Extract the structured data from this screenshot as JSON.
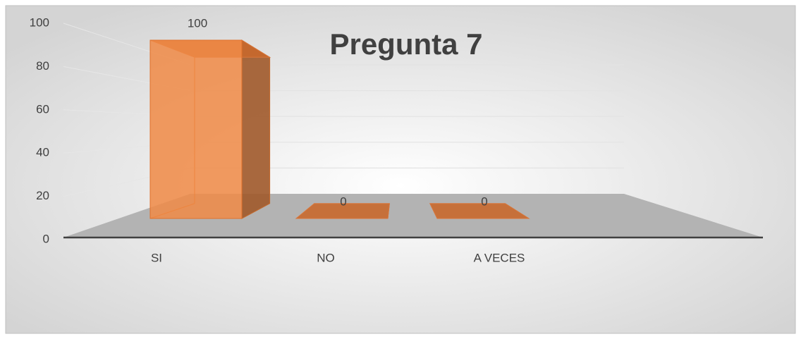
{
  "chart_data": {
    "type": "bar3d",
    "title": "Pregunta 7",
    "categories": [
      "SI",
      "NO",
      "A VECES"
    ],
    "values": [
      100,
      0,
      0
    ],
    "color": "#f08a45",
    "ylim": [
      0,
      100
    ],
    "yticks": [
      0,
      20,
      40,
      60,
      80,
      100
    ],
    "grid": true
  }
}
